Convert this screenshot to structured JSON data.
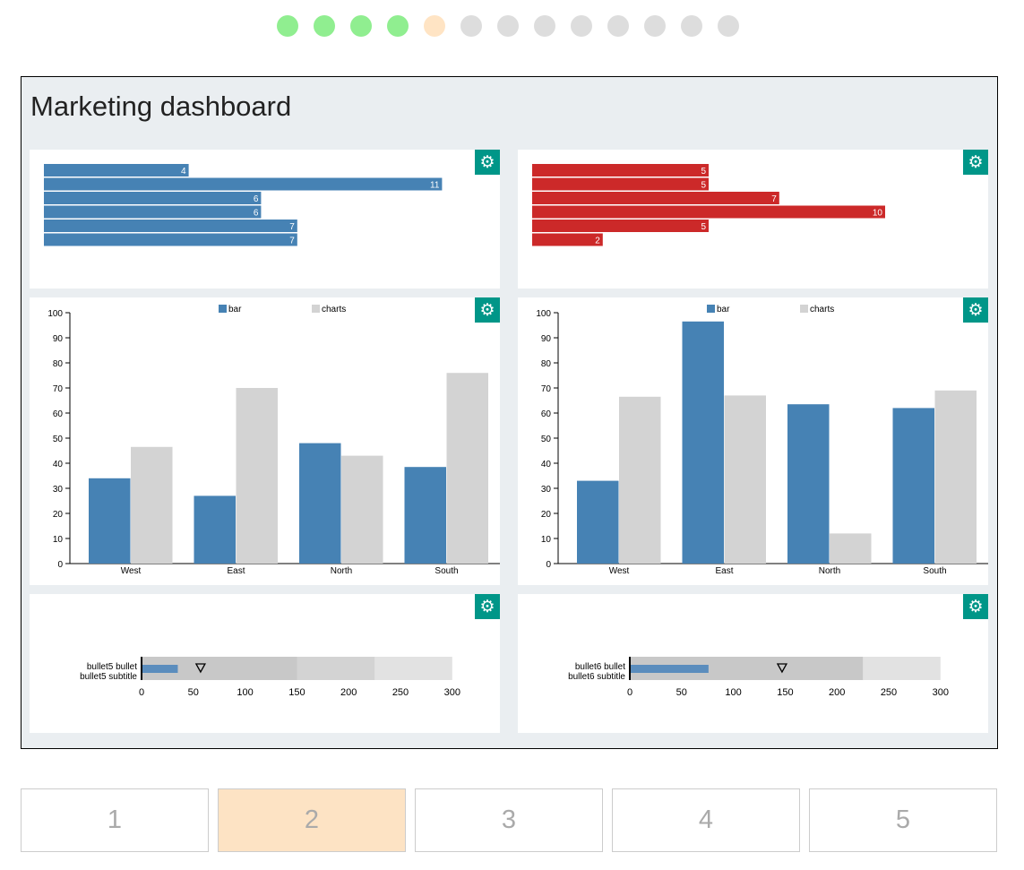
{
  "progress": {
    "steps": 13,
    "completed": 4,
    "current": 5
  },
  "dashboard": {
    "title": "Marketing dashboard",
    "colors": {
      "blue": "#4682b4",
      "red": "#cc2929",
      "gray": "#d3d3d3",
      "gear": "#009688"
    },
    "hbar_charts": [
      {
        "values": [
          4,
          11,
          6,
          6,
          7,
          7
        ],
        "color": "#4682b4"
      },
      {
        "values": [
          5,
          5,
          7,
          10,
          5,
          2
        ],
        "color": "#cc2929"
      }
    ],
    "chart_data": [
      {
        "type": "bar",
        "categories": [
          "West",
          "East",
          "North",
          "South"
        ],
        "ylim": [
          0,
          100
        ],
        "yticks": [
          0,
          10,
          20,
          30,
          40,
          50,
          60,
          70,
          80,
          90,
          100
        ],
        "series": [
          {
            "name": "bar",
            "values": [
              34,
              27,
              48,
              38.5
            ]
          },
          {
            "name": "charts",
            "values": [
              46.5,
              70,
              43,
              76
            ]
          }
        ]
      },
      {
        "type": "bar",
        "categories": [
          "West",
          "East",
          "North",
          "South"
        ],
        "ylim": [
          0,
          100
        ],
        "yticks": [
          0,
          10,
          20,
          30,
          40,
          50,
          60,
          70,
          80,
          90,
          100
        ],
        "series": [
          {
            "name": "bar",
            "values": [
              33,
              96.5,
              63.5,
              62
            ]
          },
          {
            "name": "charts",
            "values": [
              66.5,
              67,
              12,
              69
            ]
          }
        ]
      }
    ],
    "bullets": [
      {
        "title": "bullet5 bullet",
        "subtitle": "bullet5 subtitle",
        "measure": 35,
        "marker": 57,
        "ranges": [
          150,
          225,
          300
        ],
        "ticks": [
          0,
          50,
          100,
          150,
          200,
          250,
          300
        ]
      },
      {
        "title": "bullet6 bullet",
        "subtitle": "bullet6 subtitle",
        "measure": 76,
        "marker": 147,
        "ranges": [
          225,
          225,
          300
        ],
        "ticks": [
          0,
          50,
          100,
          150,
          200,
          250,
          300
        ]
      }
    ]
  },
  "pagination": {
    "pages": [
      "1",
      "2",
      "3",
      "4",
      "5"
    ],
    "active": 1
  }
}
